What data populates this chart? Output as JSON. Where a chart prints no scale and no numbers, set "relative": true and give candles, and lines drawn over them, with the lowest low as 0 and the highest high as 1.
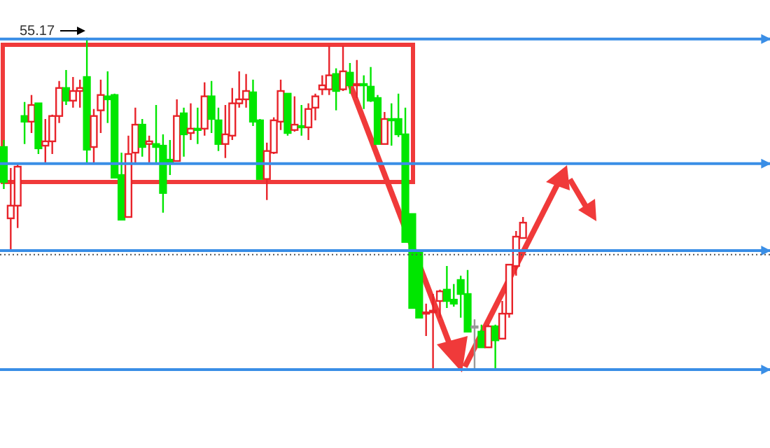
{
  "chart_data": {
    "type": "candlestick",
    "relative": true,
    "categories": [
      null,
      null,
      null,
      null,
      null,
      null,
      null,
      null,
      null,
      null,
      null,
      null,
      null,
      null,
      null,
      null,
      null,
      null,
      null,
      null,
      null,
      null,
      null,
      null,
      null,
      null,
      null,
      null,
      null,
      null,
      null,
      null,
      null,
      null,
      null,
      null,
      null,
      null,
      null,
      null,
      null,
      null,
      null,
      null,
      null,
      null,
      null,
      null,
      null,
      null,
      null,
      null,
      null,
      null,
      null,
      null,
      null,
      null,
      null,
      null,
      null,
      null,
      null,
      null,
      null,
      null,
      null,
      null,
      null,
      null,
      null,
      null,
      null,
      null,
      null,
      null
    ],
    "ohlc": [
      [
        0.672,
        0.693,
        0.546,
        0.567
      ],
      [
        0.458,
        0.609,
        0.357,
        0.496
      ],
      [
        0.496,
        0.622,
        0.429,
        0.613
      ],
      [
        0.765,
        0.807,
        0.681,
        0.748
      ],
      [
        0.748,
        0.828,
        0.714,
        0.798
      ],
      [
        0.803,
        0.803,
        0.651,
        0.668
      ],
      [
        0.676,
        0.756,
        0.626,
        0.689
      ],
      [
        0.689,
        0.769,
        0.651,
        0.765
      ],
      [
        0.765,
        0.87,
        0.744,
        0.849
      ],
      [
        0.849,
        0.903,
        0.798,
        0.811
      ],
      [
        0.811,
        0.882,
        0.79,
        0.84
      ],
      [
        0.84,
        0.874,
        0.79,
        0.849
      ],
      [
        0.882,
        1.0,
        0.622,
        0.664
      ],
      [
        0.672,
        0.786,
        0.622,
        0.765
      ],
      [
        0.782,
        0.874,
        0.714,
        0.828
      ],
      [
        0.824,
        0.899,
        0.744,
        0.815
      ],
      [
        0.828,
        0.832,
        0.58,
        0.58
      ],
      [
        0.588,
        0.655,
        0.454,
        0.454
      ],
      [
        0.462,
        0.706,
        0.462,
        0.651
      ],
      [
        0.655,
        0.79,
        0.622,
        0.739
      ],
      [
        0.739,
        0.756,
        0.643,
        0.672
      ],
      [
        0.681,
        0.706,
        0.626,
        0.689
      ],
      [
        0.681,
        0.798,
        0.622,
        0.672
      ],
      [
        0.676,
        0.71,
        0.475,
        0.534
      ],
      [
        0.634,
        0.693,
        0.588,
        0.622
      ],
      [
        0.63,
        0.815,
        0.63,
        0.765
      ],
      [
        0.773,
        0.79,
        0.643,
        0.71
      ],
      [
        0.714,
        0.803,
        0.693,
        0.727
      ],
      [
        0.727,
        0.79,
        0.681,
        0.723
      ],
      [
        0.727,
        0.866,
        0.706,
        0.824
      ],
      [
        0.824,
        0.87,
        0.714,
        0.756
      ],
      [
        0.752,
        0.79,
        0.66,
        0.681
      ],
      [
        0.681,
        0.798,
        0.639,
        0.71
      ],
      [
        0.706,
        0.849,
        0.693,
        0.803
      ],
      [
        0.803,
        0.899,
        0.79,
        0.815
      ],
      [
        0.815,
        0.891,
        0.79,
        0.84
      ],
      [
        0.836,
        0.874,
        0.735,
        0.748
      ],
      [
        0.752,
        0.756,
        0.576,
        0.576
      ],
      [
        0.576,
        0.685,
        0.513,
        0.66
      ],
      [
        0.655,
        0.761,
        0.651,
        0.752
      ],
      [
        0.748,
        0.874,
        0.723,
        0.84
      ],
      [
        0.832,
        0.832,
        0.706,
        0.714
      ],
      [
        0.723,
        0.824,
        0.718,
        0.739
      ],
      [
        0.735,
        0.798,
        0.706,
        0.731
      ],
      [
        0.731,
        0.803,
        0.693,
        0.786
      ],
      [
        0.79,
        0.832,
        0.752,
        0.824
      ],
      [
        0.845,
        0.887,
        0.828,
        0.857
      ],
      [
        0.845,
        0.975,
        0.828,
        0.887
      ],
      [
        0.891,
        0.908,
        0.782,
        0.84
      ],
      [
        0.845,
        0.975,
        0.84,
        0.899
      ],
      [
        0.895,
        0.924,
        0.832,
        0.857
      ],
      [
        0.857,
        0.933,
        0.819,
        0.861
      ],
      [
        0.861,
        0.887,
        0.786,
        0.857
      ],
      [
        0.853,
        0.912,
        0.807,
        0.811
      ],
      [
        0.819,
        0.828,
        0.681,
        0.681
      ],
      [
        0.681,
        0.777,
        0.681,
        0.756
      ],
      [
        0.756,
        0.803,
        0.676,
        0.752
      ],
      [
        0.756,
        0.832,
        0.702,
        0.71
      ],
      [
        0.71,
        0.79,
        0.387,
        0.387
      ],
      [
        0.471,
        0.471,
        0.189,
        0.189
      ],
      [
        0.357,
        0.357,
        0.16,
        0.16
      ],
      [
        0.172,
        0.202,
        0.105,
        0.176
      ],
      [
        0.176,
        0.231,
        0.008,
        0.181
      ],
      [
        0.21,
        0.244,
        0.16,
        0.239
      ],
      [
        0.244,
        0.315,
        0.189,
        0.21
      ],
      [
        0.214,
        0.261,
        0.193,
        0.202
      ],
      [
        0.273,
        0.286,
        0.16,
        0.231
      ],
      [
        0.231,
        0.303,
        0.118,
        0.118
      ],
      [
        0.134,
        0.155,
        0.0,
        0.134
      ],
      [
        0.118,
        0.139,
        0.071,
        0.071
      ],
      [
        0.071,
        0.139,
        0.071,
        0.134
      ],
      [
        0.134,
        0.139,
        0.008,
        0.092
      ],
      [
        0.097,
        0.21,
        0.097,
        0.172
      ],
      [
        0.172,
        0.319,
        0.16,
        0.319
      ],
      [
        0.315,
        0.42,
        0.286,
        0.403
      ],
      [
        0.399,
        0.462,
        0.399,
        0.445
      ]
    ],
    "colors": [
      "#00e600",
      "#e8232a",
      "#e8232a",
      "#00e600",
      "#e8232a",
      "#00e600",
      "#e8232a",
      "#e8232a",
      "#e8232a",
      "#00e600",
      "#e8232a",
      "#e8232a",
      "#00e600",
      "#e8232a",
      "#e8232a",
      "#00e600",
      "#00e600",
      "#00e600",
      "#e8232a",
      "#e8232a",
      "#00e600",
      "#e8232a",
      "#00e600",
      "#00e600",
      "#00e600",
      "#e8232a",
      "#00e600",
      "#e8232a",
      "#00e600",
      "#e8232a",
      "#00e600",
      "#00e600",
      "#e8232a",
      "#e8232a",
      "#e8232a",
      "#e8232a",
      "#00e600",
      "#00e600",
      "#e8232a",
      "#e8232a",
      "#e8232a",
      "#00e600",
      "#e8232a",
      "#00e600",
      "#e8232a",
      "#e8232a",
      "#e8232a",
      "#e8232a",
      "#00e600",
      "#e8232a",
      "#00e600",
      "#e8232a",
      "#00e600",
      "#00e600",
      "#00e600",
      "#e8232a",
      "#00e600",
      "#00e600",
      "#00e600",
      "#00e600",
      "#00e600",
      "#e8232a",
      "#e8232a",
      "#e8232a",
      "#00e600",
      "#00e600",
      "#00e600",
      "#00e600",
      "#999999",
      "#00e600",
      "#e8232a",
      "#00e600",
      "#e8232a",
      "#e8232a",
      "#e8232a",
      "#e8232a"
    ],
    "ref_lines": [
      {
        "axis": "y",
        "value": 0.996,
        "color": "#3a8ee6"
      },
      {
        "axis": "y",
        "value": 0.622,
        "color": "#3a8ee6"
      },
      {
        "axis": "y",
        "value": 0.361,
        "color": "#3a8ee6"
      },
      {
        "axis": "y",
        "value": 0.004,
        "color": "#3a8ee6"
      },
      {
        "axis": "y",
        "value": 0.349,
        "color": "#555555",
        "line_style": "dotted"
      }
    ],
    "annotations": [
      "55.17"
    ]
  }
}
